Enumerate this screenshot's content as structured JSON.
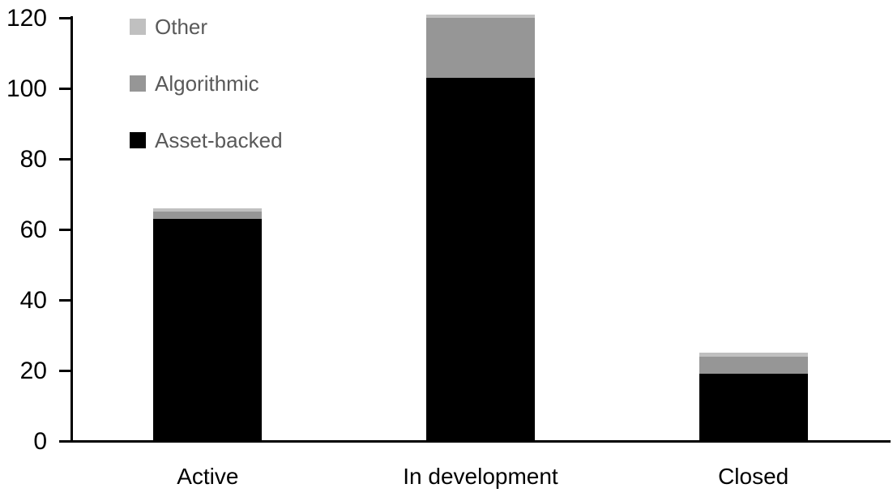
{
  "chart_data": {
    "type": "bar",
    "stacked": true,
    "title": "",
    "xlabel": "",
    "ylabel": "",
    "categories": [
      "Active",
      "In development",
      "Closed"
    ],
    "series": [
      {
        "name": "Asset-backed",
        "values": [
          63,
          103,
          19
        ],
        "color": "#000000"
      },
      {
        "name": "Algorithmic",
        "values": [
          2,
          17,
          5
        ],
        "color": "#969696"
      },
      {
        "name": "Other",
        "values": [
          1,
          1,
          1
        ],
        "color": "#c0c0c0"
      }
    ],
    "totals": [
      66,
      121,
      25
    ],
    "ylim": [
      0,
      120
    ],
    "yticks": [
      0,
      20,
      40,
      60,
      80,
      100,
      120
    ],
    "grid": false,
    "legend_position": "top-left",
    "legend_items": [
      {
        "label": "Other",
        "color": "#c0c0c0"
      },
      {
        "label": "Algorithmic",
        "color": "#969696"
      },
      {
        "label": "Asset-backed",
        "color": "#000000"
      }
    ]
  },
  "styles": {
    "background": "#ffffff",
    "axis_color": "#000000",
    "tick_label_color": "#000000",
    "category_label_color": "#000000",
    "legend_text_color": "#595959"
  }
}
